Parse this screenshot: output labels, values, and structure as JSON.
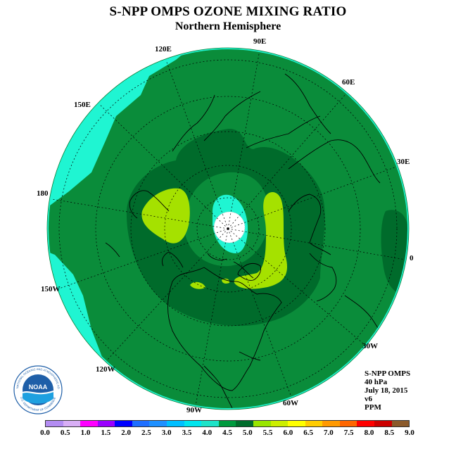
{
  "title": "S-NPP OMPS OZONE MIXING RATIO",
  "subtitle": "Northern Hemisphere",
  "longitude_labels": [
    "90E",
    "60E",
    "30E",
    "0",
    "30W",
    "60W",
    "90W",
    "120W",
    "150W",
    "180",
    "150E",
    "120E"
  ],
  "info": {
    "instrument": "S-NPP OMPS",
    "level": "40 hPa",
    "date": "July 18, 2015",
    "version": "v6",
    "units": "PPM"
  },
  "logo": {
    "text": "NOAA",
    "ring_text": "NATIONAL OCEANIC AND ATMOSPHERIC ADMINISTRATION",
    "ring_text_bottom": "U.S. DEPARTMENT OF COMMERCE"
  },
  "colorbar": {
    "ticks": [
      "0.0",
      "0.5",
      "1.0",
      "1.5",
      "2.0",
      "2.5",
      "3.0",
      "3.5",
      "4.0",
      "4.5",
      "5.0",
      "5.5",
      "6.0",
      "6.5",
      "7.0",
      "7.5",
      "8.0",
      "8.5",
      "9.0"
    ],
    "colors": [
      "#b38cf2",
      "#d8aef5",
      "#ff00ff",
      "#9a00ff",
      "#0000ff",
      "#1f6fff",
      "#1e90ff",
      "#00bfff",
      "#00e5ee",
      "#1de3c8",
      "#009a3e",
      "#006d2c",
      "#99e600",
      "#ccee00",
      "#ffff00",
      "#ffcc00",
      "#ff9900",
      "#ff6600",
      "#ff0000",
      "#cc0000",
      "#8b5a2b"
    ]
  },
  "map_colors": {
    "level_3_5_4_0": "#1ff5d2",
    "level_4_0_4_5": "#0a8c3a",
    "level_4_5_5_0": "#006b2b",
    "level_5_0_5_5": "#a5e100"
  }
}
